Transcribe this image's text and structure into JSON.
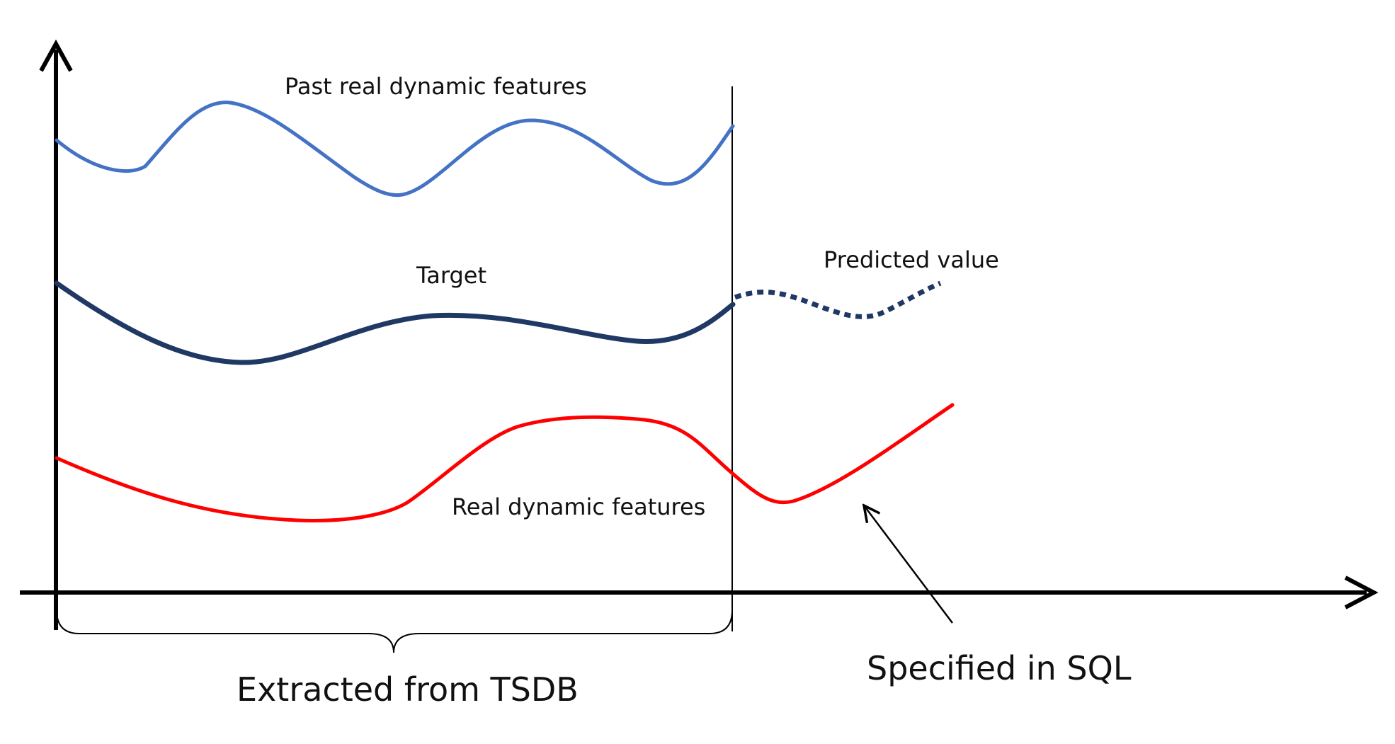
{
  "labels": {
    "past_features": "Past real dynamic features",
    "target": "Target",
    "predicted": "Predicted value",
    "real_features": "Real dynamic features",
    "extracted": "Extracted from TSDB",
    "specified": "Specified in SQL"
  },
  "colors": {
    "past_features_curve": "#4472C4",
    "target_curve": "#1F3864",
    "real_features_curve": "#FF0000",
    "axes": "#000000"
  }
}
